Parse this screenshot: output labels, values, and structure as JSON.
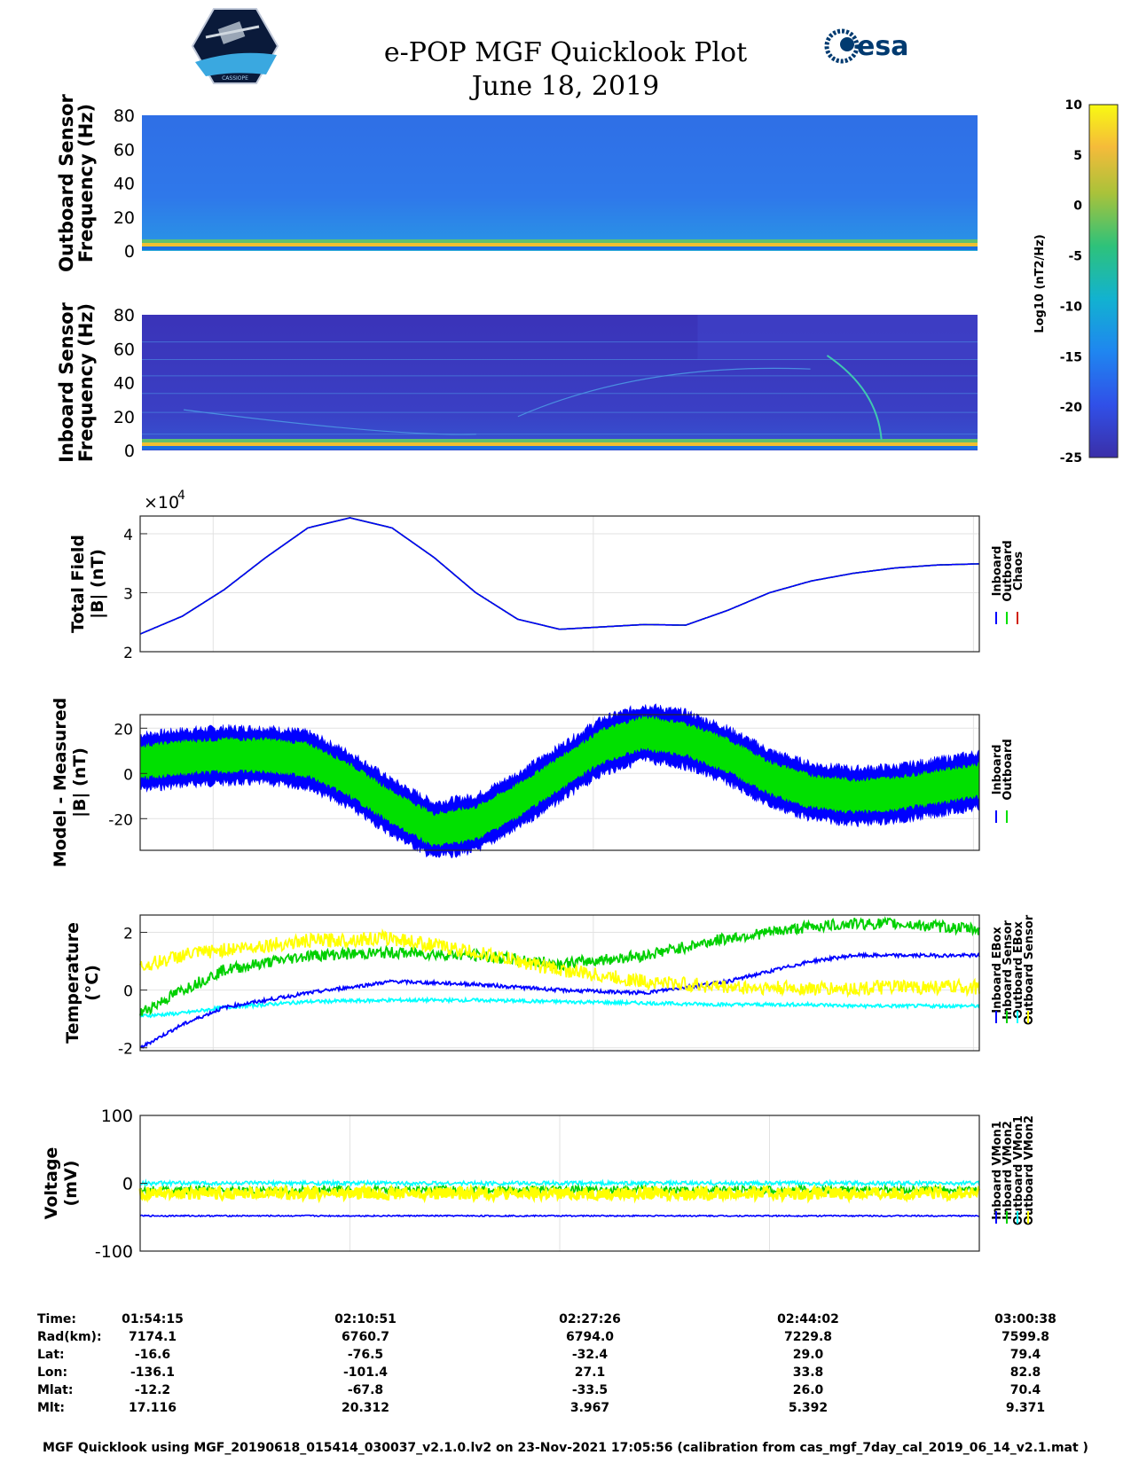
{
  "header": {
    "title_line1": "e-POP MGF Quicklook Plot",
    "title_line2": "June 18, 2019",
    "cassiope_logo_text": "CASSIOPE",
    "esa_logo_text": "esa"
  },
  "colorbar": {
    "label": "Log10 (nT2/Hz)",
    "ticks": [
      "10",
      "5",
      "0",
      "-5",
      "-10",
      "-15",
      "-20",
      "-25"
    ]
  },
  "chart_data": [
    {
      "type": "heatmap",
      "id": "outboard-spectrogram",
      "ylabel_line1": "Outboard Sensor",
      "ylabel_line2": "Frequency (Hz)",
      "ylim": [
        0,
        80
      ],
      "yticks": [
        "80",
        "60",
        "40",
        "20",
        "0"
      ],
      "color_range": [
        -25,
        10
      ]
    },
    {
      "type": "heatmap",
      "id": "inboard-spectrogram",
      "ylabel_line1": "Inboard Sensor",
      "ylabel_line2": "Frequency (Hz)",
      "ylim": [
        0,
        80
      ],
      "yticks": [
        "80",
        "60",
        "40",
        "20",
        "0"
      ],
      "color_range": [
        -25,
        10
      ]
    },
    {
      "type": "line",
      "id": "total-field",
      "ylabel_line1": "Total Field",
      "ylabel_line2": "|B| (nT)",
      "exponent_label": "×10",
      "exponent_power": "4",
      "ylim": [
        2,
        4.3
      ],
      "yticks": [
        2,
        3,
        4
      ],
      "x_frac": [
        0,
        0.05,
        0.1,
        0.15,
        0.2,
        0.25,
        0.3,
        0.35,
        0.4,
        0.45,
        0.5,
        0.55,
        0.6,
        0.65,
        0.7,
        0.75,
        0.8,
        0.85,
        0.9,
        0.95,
        1.0
      ],
      "series": [
        {
          "name": "Inboard",
          "color": "#0000ff",
          "values": [
            2.3,
            2.6,
            3.05,
            3.6,
            4.1,
            4.27,
            4.1,
            3.6,
            3.0,
            2.55,
            2.38,
            2.42,
            2.46,
            2.45,
            2.7,
            3.0,
            3.2,
            3.33,
            3.42,
            3.47,
            3.49
          ]
        },
        {
          "name": "Outboard",
          "color": "#00e000",
          "values": [
            2.3,
            2.6,
            3.05,
            3.6,
            4.1,
            4.27,
            4.1,
            3.6,
            3.0,
            2.55,
            2.38,
            2.42,
            2.46,
            2.45,
            2.7,
            3.0,
            3.2,
            3.33,
            3.42,
            3.47,
            3.49
          ]
        },
        {
          "name": "Chaos",
          "color": "#d02000",
          "values": [
            2.3,
            2.6,
            3.05,
            3.6,
            4.1,
            4.27,
            4.1,
            3.6,
            3.0,
            2.55,
            2.38,
            2.42,
            2.46,
            2.45,
            2.7,
            3.0,
            3.2,
            3.33,
            3.42,
            3.47,
            3.49
          ]
        }
      ]
    },
    {
      "type": "line",
      "id": "model-measured",
      "ylabel_line1": "Model - Measured",
      "ylabel_line2": "|B| (nT)",
      "ylim": [
        -34,
        26
      ],
      "yticks": [
        20,
        0,
        -20
      ],
      "x_frac": [
        0,
        0.05,
        0.1,
        0.15,
        0.2,
        0.25,
        0.3,
        0.35,
        0.4,
        0.45,
        0.5,
        0.55,
        0.6,
        0.65,
        0.7,
        0.75,
        0.8,
        0.85,
        0.9,
        0.95,
        1.0
      ],
      "series": [
        {
          "name": "Inboard",
          "color": "#0000ff",
          "values": [
            5,
            7,
            8,
            8,
            6,
            -3,
            -15,
            -25,
            -22,
            -12,
            0,
            12,
            18,
            15,
            8,
            -2,
            -8,
            -10,
            -9,
            -6,
            -3
          ]
        },
        {
          "name": "Outboard",
          "color": "#00e000",
          "values": [
            5,
            7,
            8,
            8,
            6,
            -3,
            -15,
            -25,
            -22,
            -12,
            0,
            12,
            18,
            15,
            8,
            -2,
            -8,
            -10,
            -9,
            -6,
            -3
          ]
        }
      ]
    },
    {
      "type": "line",
      "id": "temperature",
      "ylabel_line1": "Temperature",
      "ylabel_line2": "(°C)",
      "ylim": [
        -2.1,
        2.6
      ],
      "yticks": [
        2,
        0,
        -2
      ],
      "x_frac": [
        0,
        0.05,
        0.1,
        0.2,
        0.3,
        0.4,
        0.5,
        0.6,
        0.7,
        0.8,
        0.85,
        0.9,
        1.0
      ],
      "series": [
        {
          "name": "Inboard EBox",
          "color": "#0000ff",
          "values": [
            -2.0,
            -1.2,
            -0.6,
            -0.1,
            0.3,
            0.2,
            0.0,
            -0.1,
            0.3,
            1.0,
            1.2,
            1.2,
            1.2
          ]
        },
        {
          "name": "Inboard Sensor",
          "color": "#00d000",
          "values": [
            -0.8,
            0.0,
            0.7,
            1.2,
            1.3,
            1.2,
            0.9,
            1.2,
            1.8,
            2.2,
            2.3,
            2.3,
            2.1
          ]
        },
        {
          "name": "Outboard EBox",
          "color": "#00ffff",
          "values": [
            -0.9,
            -0.8,
            -0.6,
            -0.4,
            -0.35,
            -0.35,
            -0.4,
            -0.45,
            -0.5,
            -0.5,
            -0.55,
            -0.55,
            -0.55
          ]
        },
        {
          "name": "Outboard Sensor",
          "color": "#ffff00",
          "values": [
            0.8,
            1.2,
            1.4,
            1.7,
            1.8,
            1.3,
            0.7,
            0.3,
            0.1,
            0.05,
            0.05,
            0.1,
            0.1
          ]
        }
      ]
    },
    {
      "type": "line",
      "id": "voltage",
      "ylabel_line1": "Voltage",
      "ylabel_line2": "(mV)",
      "ylim": [
        -100,
        100
      ],
      "yticks": [
        100,
        0,
        -100
      ],
      "x_frac": [
        0,
        0.05,
        0.25,
        0.5,
        0.75,
        1.0
      ],
      "series": [
        {
          "name": "Inboard VMon1",
          "color": "#0000ff",
          "values": [
            -48,
            -48,
            -48,
            -48,
            -48,
            -48
          ]
        },
        {
          "name": "Inboard VMon2",
          "color": "#00d000",
          "values": [
            -10,
            -10,
            -10,
            -10,
            -10,
            -10
          ]
        },
        {
          "name": "Outboard VMon1",
          "color": "#00ffff",
          "values": [
            0,
            0,
            0,
            0,
            0,
            0
          ]
        },
        {
          "name": "Outboard VMon2",
          "color": "#ffff00",
          "values": [
            -15,
            -15,
            -15,
            -15,
            -15,
            -15
          ]
        }
      ]
    }
  ],
  "x_axis_table": {
    "row_labels": [
      "Time:",
      "Rad(km):",
      "Lat:",
      "Lon:",
      "Mlat:",
      "Mlt:"
    ],
    "columns": [
      [
        "01:54:15",
        "7174.1",
        "-16.6",
        "-136.1",
        "-12.2",
        "17.116"
      ],
      [
        "02:10:51",
        "6760.7",
        "-76.5",
        "-101.4",
        "-67.8",
        "20.312"
      ],
      [
        "02:27:26",
        "6794.0",
        "-32.4",
        "27.1",
        "-33.5",
        "3.967"
      ],
      [
        "02:44:02",
        "7229.8",
        "29.0",
        "33.8",
        "26.0",
        "5.392"
      ],
      [
        "03:00:38",
        "7599.8",
        "79.4",
        "82.8",
        "70.4",
        "9.371"
      ]
    ]
  },
  "footer": "MGF Quicklook using MGF_20190618_015414_030037_v2.1.0.lv2 on 23-Nov-2021 17:05:56 (calibration from cas_mgf_7day_cal_2019_06_14_v2.1.mat )"
}
